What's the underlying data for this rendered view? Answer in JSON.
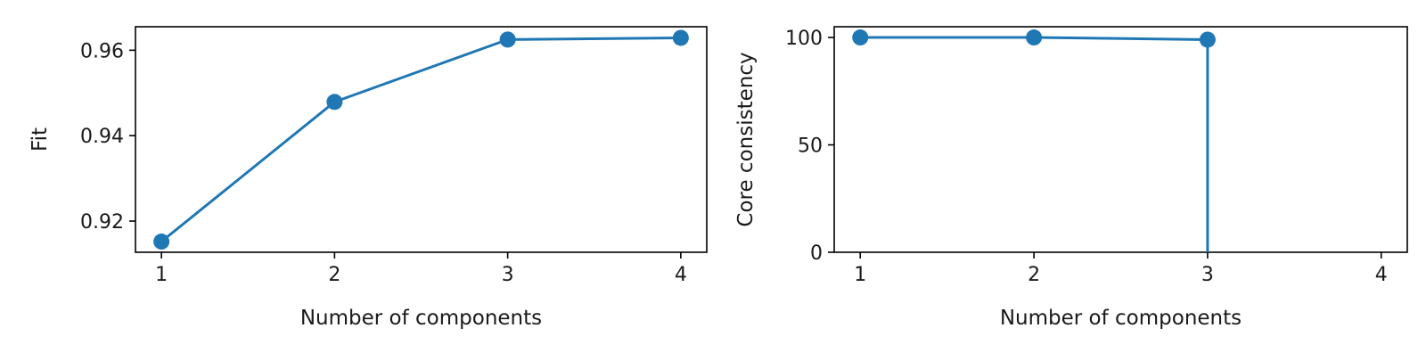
{
  "chart_data": [
    {
      "type": "line",
      "title": "",
      "xlabel": "Number of components",
      "ylabel": "Fit",
      "x": [
        1,
        2,
        3,
        4
      ],
      "values": [
        0.9152,
        0.9479,
        0.9625,
        0.9629
      ],
      "xlim": [
        0.85,
        4.15
      ],
      "ylim": [
        0.9127,
        0.9655
      ],
      "xticks": [
        1,
        2,
        3,
        4
      ],
      "xtick_labels": [
        "1",
        "2",
        "3",
        "4"
      ],
      "yticks": [
        0.92,
        0.94,
        0.96
      ],
      "ytick_labels": [
        "0.92",
        "0.94",
        "0.96"
      ],
      "color": "#1f77b4",
      "marker": "circle",
      "grid": false
    },
    {
      "type": "line",
      "title": "",
      "xlabel": "Number of components",
      "ylabel": "Core consistency",
      "x": [
        1,
        2,
        3,
        3
      ],
      "values": [
        100,
        100,
        99,
        -10
      ],
      "marker_mask": [
        true,
        true,
        true,
        false
      ],
      "xlim": [
        0.85,
        4.15
      ],
      "ylim": [
        0,
        105
      ],
      "xticks": [
        1,
        2,
        3,
        4
      ],
      "xtick_labels": [
        "1",
        "2",
        "3",
        "4"
      ],
      "yticks": [
        0,
        50,
        100
      ],
      "ytick_labels": [
        "0",
        "50",
        "100"
      ],
      "color": "#1f77b4",
      "marker": "circle",
      "grid": false
    }
  ]
}
